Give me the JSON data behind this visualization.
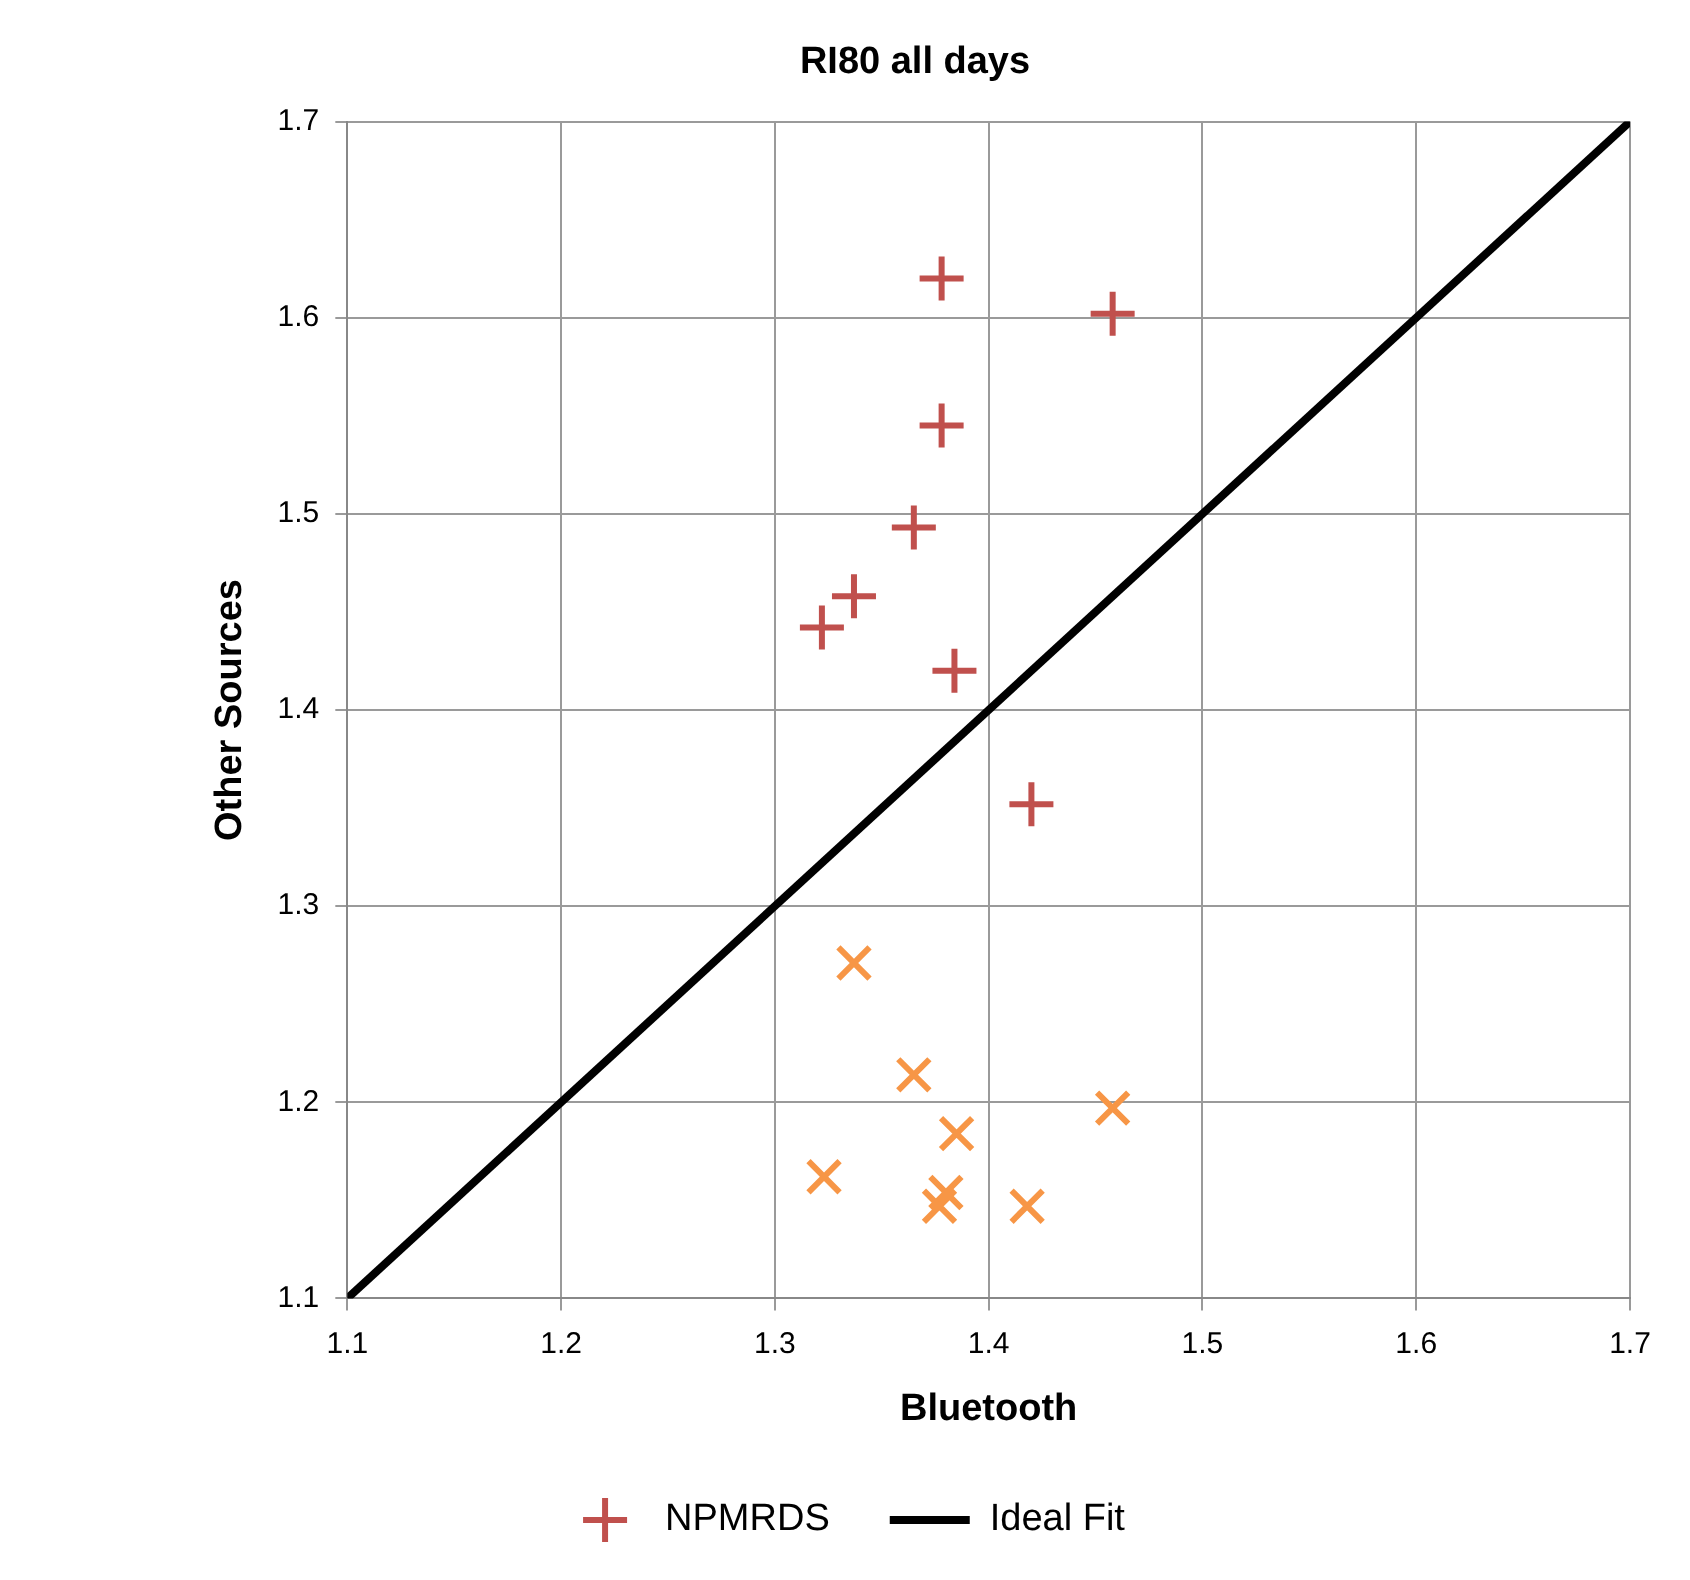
{
  "chart_data": {
    "type": "scatter",
    "title": "RI80 all days",
    "xlabel": "Bluetooth",
    "ylabel": "Other Sources",
    "xlim": [
      1.1,
      1.7
    ],
    "xticks": [
      1.1,
      1.2,
      1.3,
      1.4,
      1.5,
      1.6,
      1.7
    ],
    "ylim": [
      1.1,
      1.7
    ],
    "yticks": [
      1.1,
      1.2,
      1.3,
      1.4,
      1.5,
      1.6,
      1.7
    ],
    "grid": true,
    "legend": "bottom",
    "series": [
      {
        "marker": "cross",
        "color": "#f79646",
        "x": [
          1.337,
          1.365,
          1.385,
          1.458,
          1.323,
          1.38,
          1.377,
          1.418
        ],
        "values": [
          1.271,
          1.214,
          1.184,
          1.197,
          1.162,
          1.154,
          1.147,
          1.147
        ]
      },
      {
        "name": "NPMRDS",
        "marker": "cross",
        "color": "#c0504d",
        "x": [
          1.378,
          1.458,
          1.378,
          1.365,
          1.322,
          1.337,
          1.384,
          1.42
        ],
        "values": [
          1.62,
          1.602,
          1.545,
          1.493,
          1.442,
          1.458,
          1.42,
          1.352
        ]
      },
      {
        "type": "line",
        "name": "Ideal Fit",
        "marker": "none",
        "line_style": "solid",
        "color": "#000000",
        "x": [
          1.1,
          1.7
        ],
        "values": [
          1.1,
          1.7
        ]
      }
    ]
  }
}
